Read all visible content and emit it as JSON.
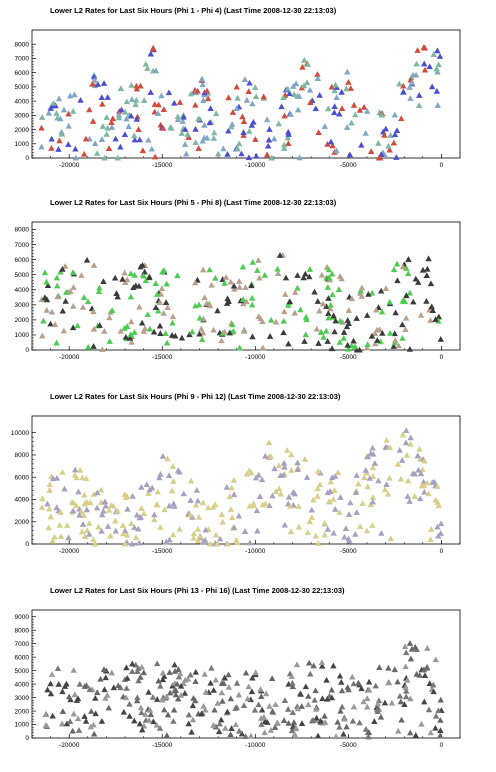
{
  "chart_data": [
    {
      "type": "scatter",
      "title": "Lower L2 Rates for Last Six Hours (Phi 1 - Phi 4) (Last Time 2008-12-30 22:13:03)",
      "xlabel": "",
      "ylabel": "",
      "xlim": [
        -22000,
        1000
      ],
      "ylim": [
        0,
        9000
      ],
      "xticks": [
        -20000,
        -15000,
        -10000,
        -5000,
        0
      ],
      "yticks": [
        0,
        1000,
        2000,
        3000,
        4000,
        5000,
        6000,
        7000,
        8000
      ],
      "grid": false,
      "marker": "triangle",
      "series_colors": [
        "#d24a3c",
        "#7fb8a0",
        "#4a4fd0",
        "#80a7c8"
      ],
      "n_points": 320,
      "seed": 11,
      "profile": [
        [
          -21500,
          3500
        ],
        [
          -20000,
          2200
        ],
        [
          -18500,
          3800
        ],
        [
          -17000,
          2500
        ],
        [
          -15500,
          5600
        ],
        [
          -14500,
          2000
        ],
        [
          -13000,
          4200
        ],
        [
          -12000,
          1200
        ],
        [
          -10500,
          3600
        ],
        [
          -9000,
          1500
        ],
        [
          -7500,
          5000
        ],
        [
          -6000,
          2800
        ],
        [
          -4800,
          4500
        ],
        [
          -3800,
          1500
        ],
        [
          -2800,
          1600
        ],
        [
          -1500,
          5600
        ],
        [
          0,
          5800
        ]
      ],
      "spread": 2200
    },
    {
      "type": "scatter",
      "title": "Lower L2 Rates for Last Six Hours (Phi 5 - Phi 8) (Last Time 2008-12-30 22:13:03)",
      "xlabel": "",
      "ylabel": "",
      "xlim": [
        -22000,
        1000
      ],
      "ylim": [
        0,
        8500
      ],
      "xticks": [
        -20000,
        -15000,
        -10000,
        -5000,
        0
      ],
      "yticks": [
        0,
        1000,
        2000,
        3000,
        4000,
        5000,
        6000,
        7000,
        8000
      ],
      "grid": false,
      "marker": "triangle",
      "series_colors": [
        "#3a3a3a",
        "#b9a08c",
        "#4ccc50"
      ],
      "n_points": 340,
      "seed": 23,
      "profile": [
        [
          -21500,
          3200
        ],
        [
          -19500,
          3800
        ],
        [
          -17500,
          3000
        ],
        [
          -16000,
          3600
        ],
        [
          -14500,
          3000
        ],
        [
          -13000,
          3400
        ],
        [
          -11500,
          2600
        ],
        [
          -10000,
          4000
        ],
        [
          -8500,
          4200
        ],
        [
          -7000,
          3800
        ],
        [
          -5500,
          2800
        ],
        [
          -4500,
          2000
        ],
        [
          -3000,
          3000
        ],
        [
          -1500,
          3800
        ],
        [
          0,
          3600
        ]
      ],
      "spread": 2400
    },
    {
      "type": "scatter",
      "title": "Lower L2 Rates for Last Six Hours (Phi 9 - Phi 12) (Last Time 2008-12-30 22:13:03)",
      "xlabel": "",
      "ylabel": "",
      "xlim": [
        -22000,
        1000
      ],
      "ylim": [
        0,
        11500
      ],
      "xticks": [
        -20000,
        -15000,
        -10000,
        -5000,
        0
      ],
      "yticks": [
        0,
        2000,
        4000,
        6000,
        8000,
        10000
      ],
      "grid": false,
      "marker": "triangle",
      "series_colors": [
        "#d8cf8a",
        "#a8a0c0"
      ],
      "n_points": 340,
      "seed": 37,
      "profile": [
        [
          -21500,
          4500
        ],
        [
          -19500,
          4000
        ],
        [
          -18000,
          1800
        ],
        [
          -16500,
          1500
        ],
        [
          -15000,
          5000
        ],
        [
          -13500,
          3500
        ],
        [
          -12000,
          1200
        ],
        [
          -10500,
          5500
        ],
        [
          -9000,
          6500
        ],
        [
          -7500,
          5000
        ],
        [
          -6000,
          4000
        ],
        [
          -4800,
          2500
        ],
        [
          -3500,
          7000
        ],
        [
          -2000,
          7500
        ],
        [
          -500,
          4000
        ],
        [
          0,
          3000
        ]
      ],
      "spread": 3000
    },
    {
      "type": "scatter",
      "title": "Lower L2 Rates for Last Six Hours (Phi 13 - Phi 16) (Last Time 2008-12-30 22:13:03)",
      "xlabel": "",
      "ylabel": "",
      "xlim": [
        -22000,
        1000
      ],
      "ylim": [
        0,
        9500
      ],
      "xticks": [
        -20000,
        -15000,
        -10000,
        -5000,
        0
      ],
      "yticks": [
        0,
        1000,
        2000,
        3000,
        4000,
        5000,
        6000,
        7000,
        8000,
        9000
      ],
      "grid": false,
      "marker": "triangle",
      "series_colors": [
        "#444444",
        "#777777",
        "#9a9a9a",
        "#666666"
      ],
      "n_points": 360,
      "seed": 53,
      "profile": [
        [
          -21500,
          3000
        ],
        [
          -19500,
          2800
        ],
        [
          -17500,
          3800
        ],
        [
          -15500,
          3200
        ],
        [
          -14000,
          3500
        ],
        [
          -12500,
          3000
        ],
        [
          -11000,
          2200
        ],
        [
          -9500,
          3200
        ],
        [
          -8000,
          3000
        ],
        [
          -6500,
          3400
        ],
        [
          -5000,
          3000
        ],
        [
          -3800,
          2400
        ],
        [
          -2500,
          4500
        ],
        [
          -1500,
          5200
        ],
        [
          0,
          3500
        ]
      ],
      "spread": 2400
    }
  ]
}
